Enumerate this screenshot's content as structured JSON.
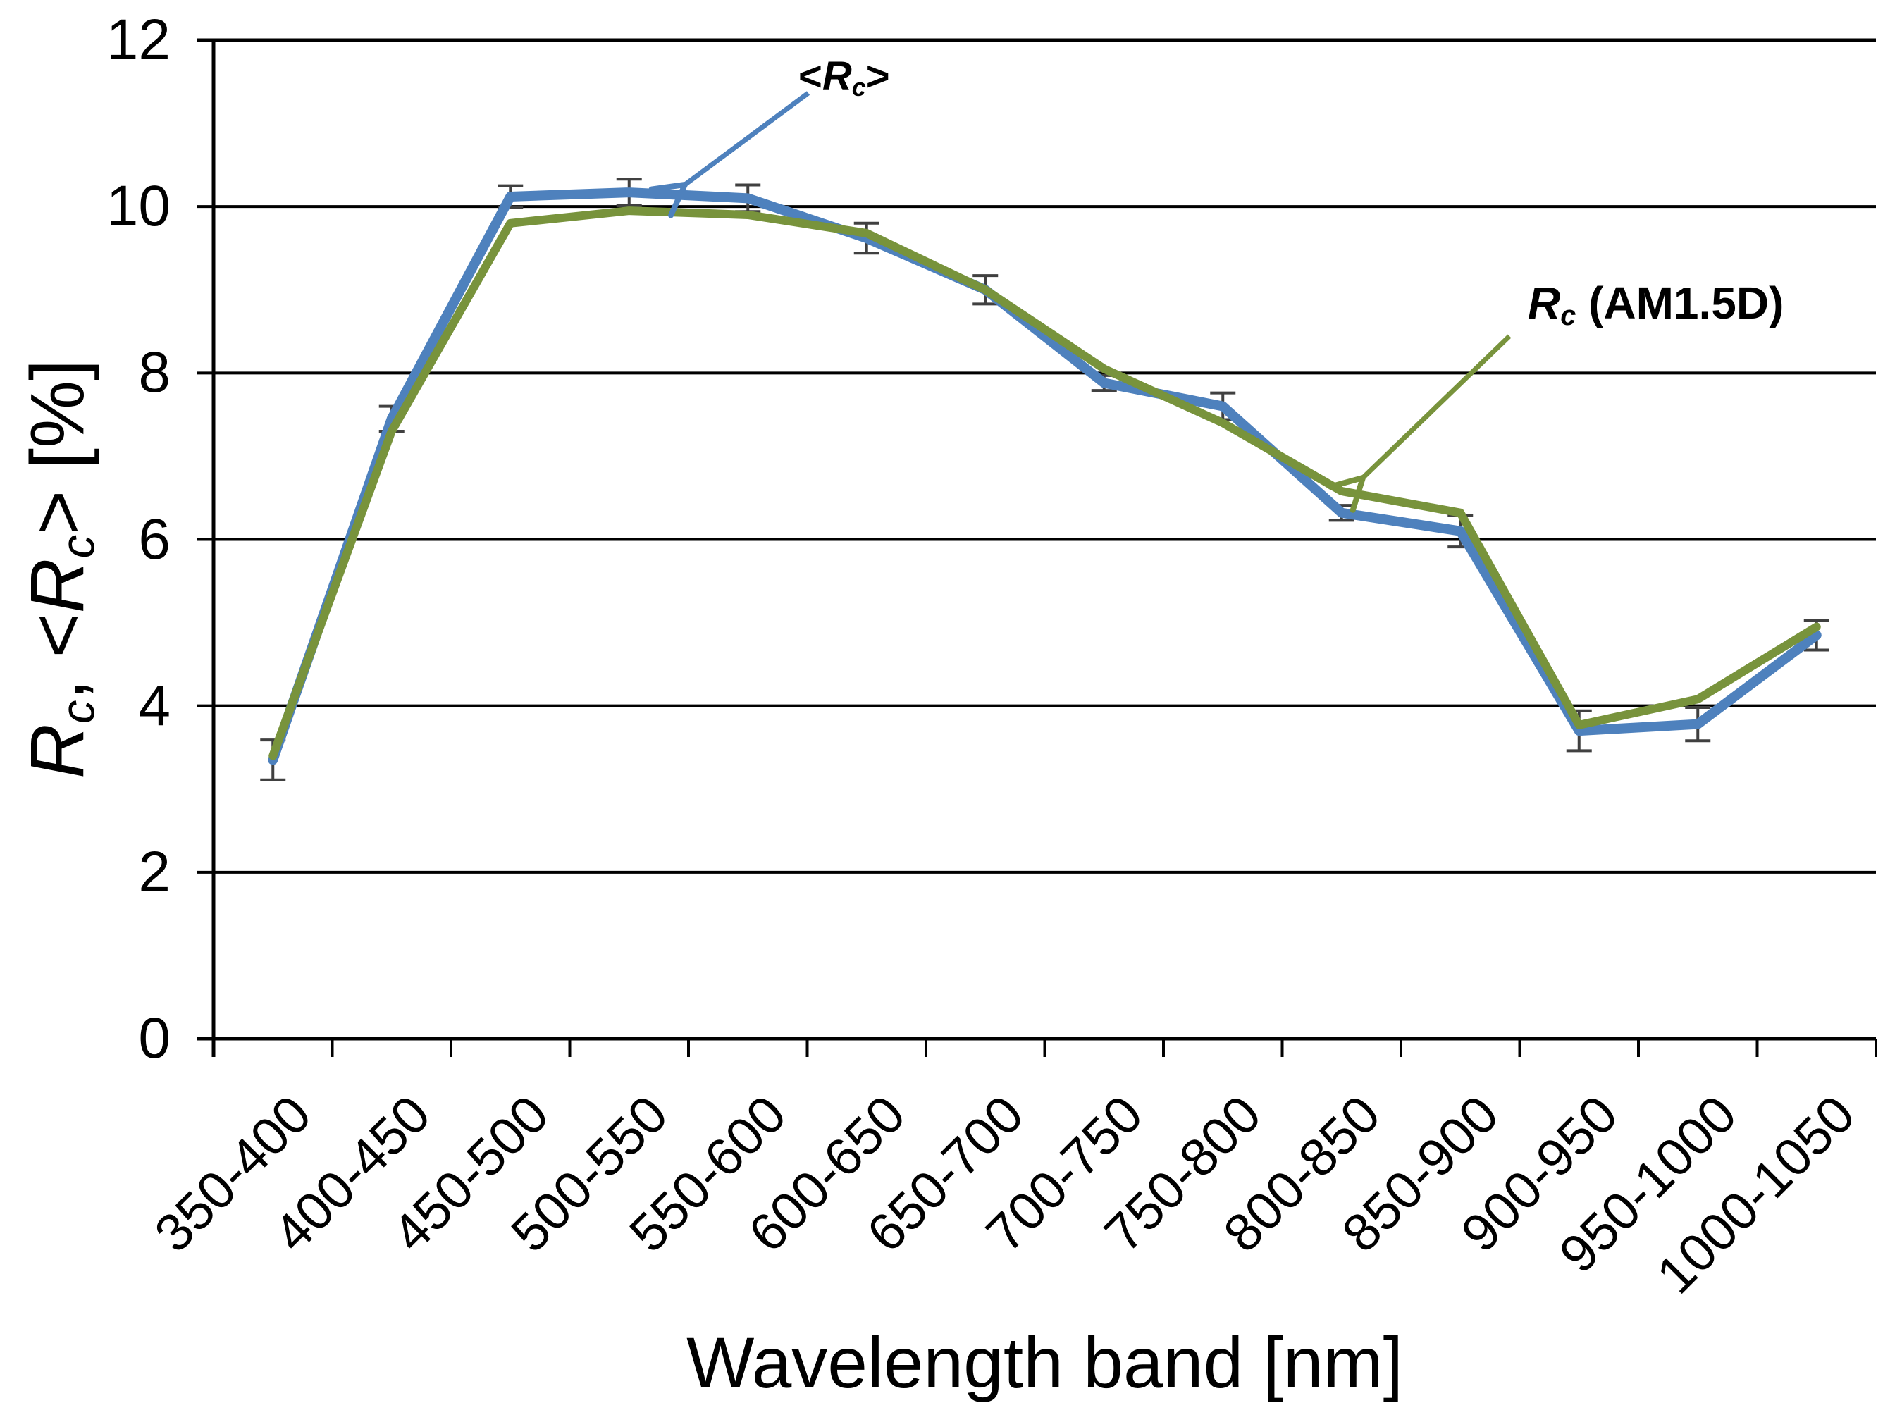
{
  "chart_data": {
    "type": "line",
    "title": "",
    "xlabel": "Wavelength band [nm]",
    "ylabel_segments": [
      {
        "text": "R",
        "i": true
      },
      {
        "text": "c",
        "i": true,
        "sub": true
      },
      {
        "text": ", <"
      },
      {
        "text": "R",
        "i": true
      },
      {
        "text": "c",
        "i": true,
        "sub": true
      },
      {
        "text": "> [%]"
      }
    ],
    "yticks": [
      "12",
      "10",
      "8",
      "6",
      "4",
      "2",
      "0"
    ],
    "ylim": [
      0,
      12
    ],
    "grid": "horizontal",
    "legend_position": "inline-annotations",
    "categories": [
      "350-400",
      "400-450",
      "450-500",
      "500-550",
      "550-600",
      "600-650",
      "650-700",
      "700-750",
      "750-800",
      "800-850",
      "850-900",
      "900-950",
      "950-1000",
      "1000-1050"
    ],
    "series": [
      {
        "name": "<Rc>",
        "color": "#4E81BD",
        "label_segments": [
          {
            "text": "<",
            "b": true
          },
          {
            "text": "R",
            "b": true,
            "i": true
          },
          {
            "text": "c",
            "b": true,
            "i": true,
            "sub": true
          },
          {
            "text": ">",
            "b": true
          }
        ],
        "values": [
          3.35,
          7.45,
          10.12,
          10.17,
          10.1,
          9.62,
          9.0,
          7.88,
          7.6,
          6.32,
          6.1,
          3.7,
          3.78,
          4.85
        ],
        "error": [
          0.24,
          0.15,
          0.13,
          0.16,
          0.16,
          0.18,
          0.17,
          0.09,
          0.16,
          0.09,
          0.19,
          0.24,
          0.2,
          0.18
        ]
      },
      {
        "name": "Rc (AM1.5D)",
        "color": "#78933C",
        "label_segments": [
          {
            "text": "R",
            "b": true,
            "i": true
          },
          {
            "text": "c",
            "b": true,
            "i": true,
            "sub": true
          },
          {
            "text": " (AM1.5D)",
            "b": true
          }
        ],
        "values": [
          3.4,
          7.3,
          9.8,
          9.95,
          9.9,
          9.68,
          9.0,
          8.05,
          7.4,
          6.58,
          6.32,
          3.77,
          4.08,
          4.95
        ],
        "error": null
      }
    ],
    "error_bar_color": "#404040",
    "axis_color": "#000000"
  }
}
